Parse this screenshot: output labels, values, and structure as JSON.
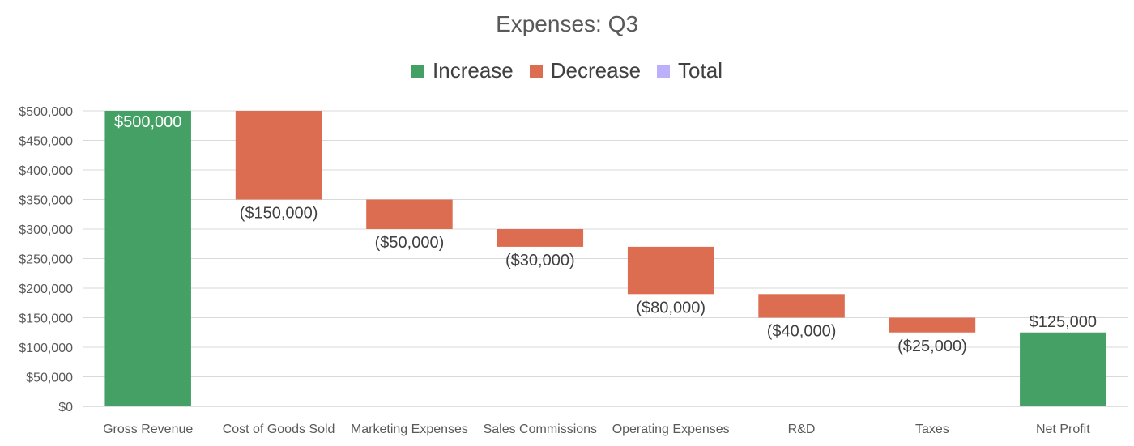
{
  "chart_data": {
    "type": "bar",
    "subtype": "waterfall",
    "title": "Expenses: Q3",
    "legend": {
      "placement": "top",
      "entries": [
        {
          "key": "increase",
          "label": "Increase",
          "color": "#44a065"
        },
        {
          "key": "decrease",
          "label": "Decrease",
          "color": "#dd6d51"
        },
        {
          "key": "total",
          "label": "Total",
          "color": "#bcaffb"
        }
      ]
    },
    "categories": [
      "Gross Revenue",
      "Cost of Goods Sold",
      "Marketing Expenses",
      "Sales Commissions",
      "Operating Expenses",
      "R&D",
      "Taxes",
      "Net Profit"
    ],
    "values": [
      500000,
      -150000,
      -50000,
      -30000,
      -80000,
      -40000,
      -25000,
      125000
    ],
    "kinds": [
      "increase",
      "decrease",
      "decrease",
      "decrease",
      "decrease",
      "decrease",
      "decrease",
      "increase"
    ],
    "data_labels": [
      "$500,000",
      "($150,000)",
      "($50,000)",
      "($30,000)",
      "($80,000)",
      "($40,000)",
      "($25,000)",
      "$125,000"
    ],
    "ylim": [
      0,
      500000
    ],
    "yticks": [
      0,
      50000,
      100000,
      150000,
      200000,
      250000,
      300000,
      350000,
      400000,
      450000,
      500000
    ],
    "ytick_labels": [
      "$0",
      "$50,000",
      "$100,000",
      "$150,000",
      "$200,000",
      "$250,000",
      "$300,000",
      "$350,000",
      "$400,000",
      "$450,000",
      "$500,000"
    ],
    "grid": true
  }
}
